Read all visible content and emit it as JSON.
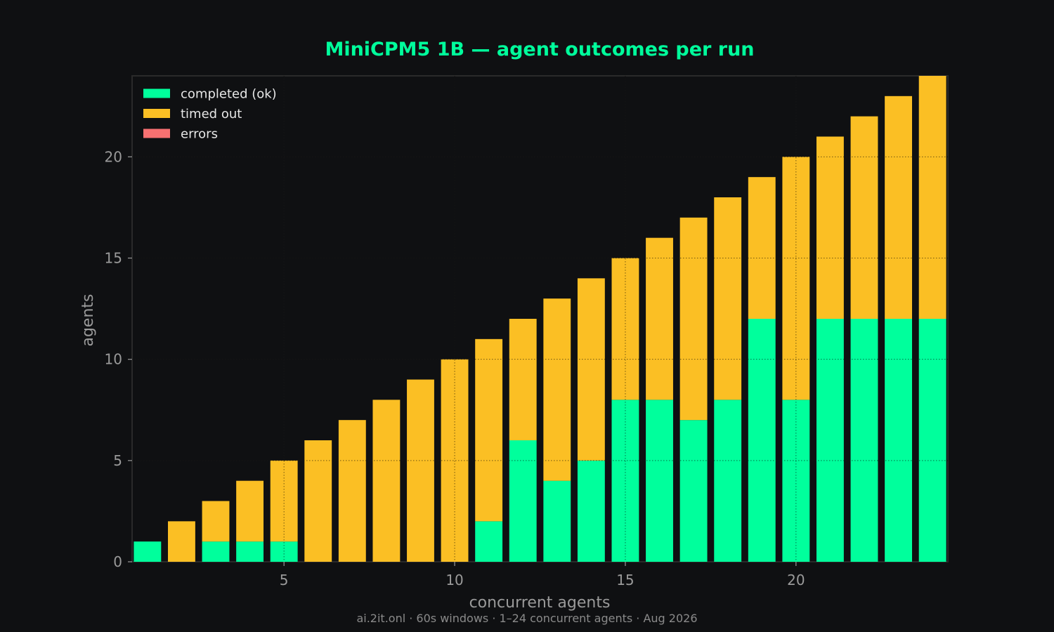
{
  "chart_data": {
    "type": "bar",
    "stacked": true,
    "title": "MiniCPM5 1B — agent outcomes per run",
    "xlabel": "concurrent agents",
    "ylabel": "agents",
    "footer": "ai.2it.onl · 60s windows · 1–24 concurrent agents · Aug 2026",
    "x": [
      1,
      2,
      3,
      4,
      5,
      6,
      7,
      8,
      9,
      10,
      11,
      12,
      13,
      14,
      15,
      16,
      17,
      18,
      19,
      20,
      21,
      22,
      23,
      24
    ],
    "xlim": [
      0.55,
      24.45
    ],
    "ylim": [
      0,
      24
    ],
    "xticks": [
      5,
      10,
      15,
      20
    ],
    "yticks": [
      0,
      5,
      10,
      15,
      20
    ],
    "grid": true,
    "legend_position": "top-left",
    "series": [
      {
        "name": "completed (ok)",
        "color": "#00ff9c",
        "values": [
          1,
          0,
          1,
          1,
          1,
          0,
          0,
          0,
          0,
          0,
          2,
          6,
          4,
          5,
          8,
          8,
          7,
          8,
          12,
          8,
          12,
          12,
          12,
          12
        ]
      },
      {
        "name": "timed out",
        "color": "#fbbf24",
        "values": [
          0,
          2,
          2,
          3,
          4,
          6,
          7,
          8,
          9,
          10,
          9,
          6,
          9,
          9,
          7,
          8,
          10,
          10,
          7,
          12,
          9,
          10,
          11,
          12
        ]
      },
      {
        "name": "errors",
        "color": "#f87171",
        "values": [
          0,
          0,
          0,
          0,
          0,
          0,
          0,
          0,
          0,
          0,
          0,
          0,
          0,
          0,
          0,
          0,
          0,
          0,
          0,
          0,
          0,
          0,
          0,
          0
        ]
      }
    ]
  }
}
